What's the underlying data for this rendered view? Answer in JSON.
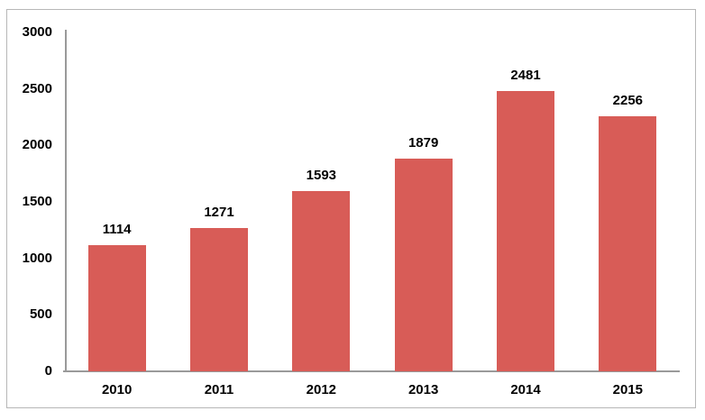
{
  "chart_data": {
    "type": "bar",
    "categories": [
      "2010",
      "2011",
      "2012",
      "2013",
      "2014",
      "2015"
    ],
    "values": [
      1114,
      1271,
      1593,
      1879,
      2481,
      2256
    ],
    "title": "",
    "xlabel": "",
    "ylabel": "",
    "ylim": [
      0,
      3000
    ],
    "yticks": [
      0,
      500,
      1000,
      1500,
      2000,
      2500,
      3000
    ],
    "grid": false,
    "legend": false,
    "data_labels": true,
    "bar_color": "#d85c57",
    "axis_color": "#9a9a9a",
    "text_color": "#000000"
  },
  "figure": {
    "border_color": "#b7b7b7",
    "background": "#ffffff"
  }
}
